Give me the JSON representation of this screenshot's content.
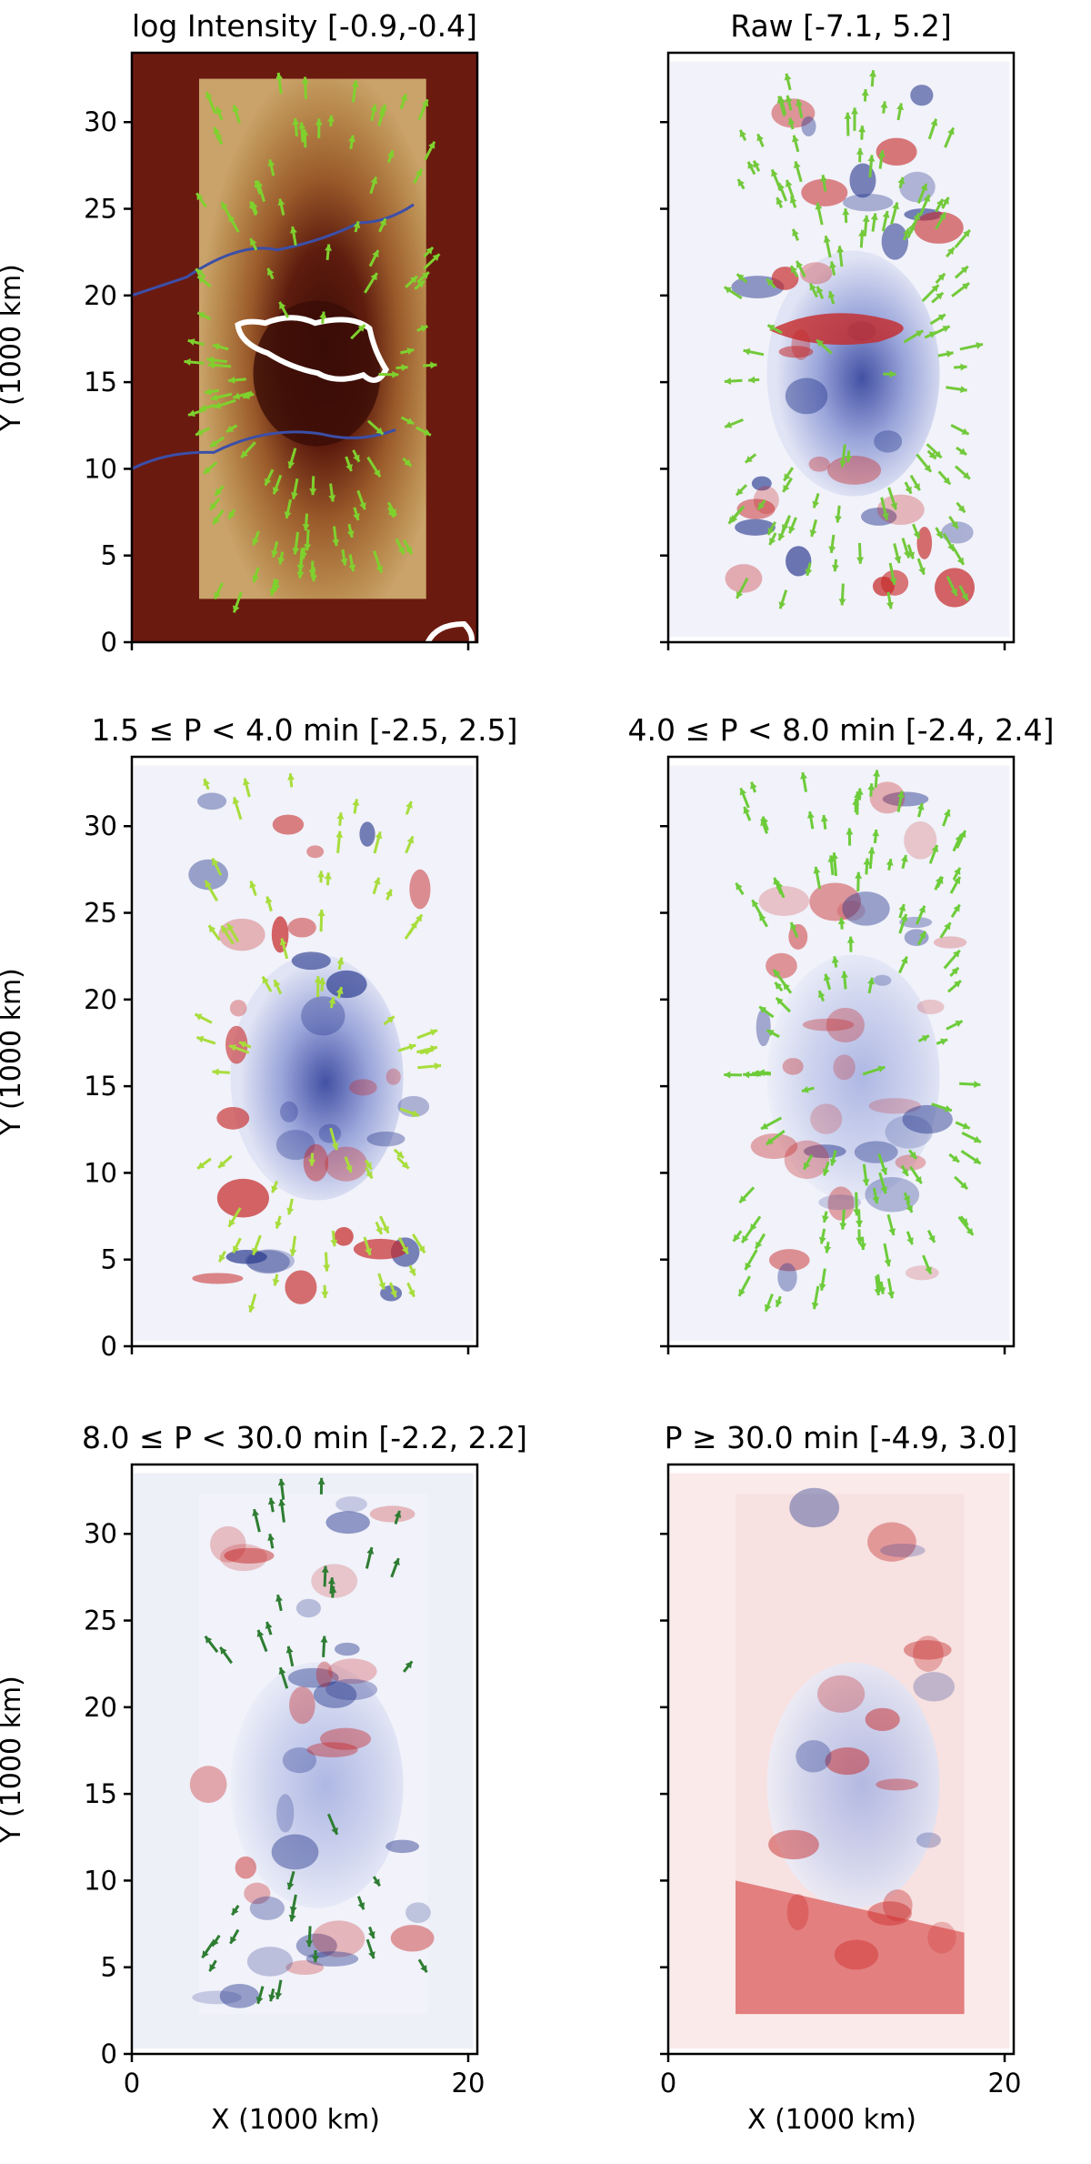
{
  "figure": {
    "panels": [
      {
        "title": "log Intensity [-0.9,-0.4]",
        "colormap": "solar-intensity",
        "scale_range": [
          -0.9,
          -0.4
        ],
        "arrow_color": "#7fd12e",
        "has_contours": true,
        "background": "#6b1a10"
      },
      {
        "title": "Raw [-7.1, 5.2]",
        "colormap": "diverging-red-blue",
        "scale_range": [
          -7.1,
          5.2
        ],
        "arrow_color": "#73c93b",
        "has_contours": false,
        "background": "#f2f2fa"
      },
      {
        "title": "1.5 ≤ P < 4.0 min [-2.5, 2.5]",
        "colormap": "diverging-red-blue",
        "scale_range": [
          -2.5,
          2.5
        ],
        "arrow_color": "#a8dd3c",
        "has_contours": false,
        "background": "#f2f2fa"
      },
      {
        "title": "4.0 ≤ P < 8.0 min [-2.4, 2.4]",
        "colormap": "diverging-red-blue",
        "scale_range": [
          -2.4,
          2.4
        ],
        "arrow_color": "#6dcc3a",
        "has_contours": false,
        "background": "#f2f2fa"
      },
      {
        "title": "8.0 ≤ P < 30.0 min [-2.2, 2.2]",
        "colormap": "diverging-red-blue",
        "scale_range": [
          -2.2,
          2.2
        ],
        "arrow_color": "#2e7d32",
        "has_contours": false,
        "background": "#eef0f8"
      },
      {
        "title": "P ≥ 30.0 min [-4.9, 3.0]",
        "colormap": "diverging-red-blue",
        "scale_range": [
          -4.9,
          3.0
        ],
        "arrow_color": null,
        "has_contours": false,
        "background": "#fbeaea"
      }
    ]
  },
  "chart_data": {
    "type": "heatmap",
    "layout": "3x2 grid of panels with shared axes",
    "xlabel": "X (1000 km)",
    "ylabel": "Y (1000 km)",
    "xlim": [
      0,
      20
    ],
    "ylim": [
      0,
      34
    ],
    "x_ticks": [
      "0",
      "20"
    ],
    "y_ticks": [
      "0",
      "5",
      "10",
      "15",
      "20",
      "25",
      "30"
    ],
    "overlay": "velocity arrows (quiver)",
    "sunspot_center": [
      11,
      16
    ]
  }
}
